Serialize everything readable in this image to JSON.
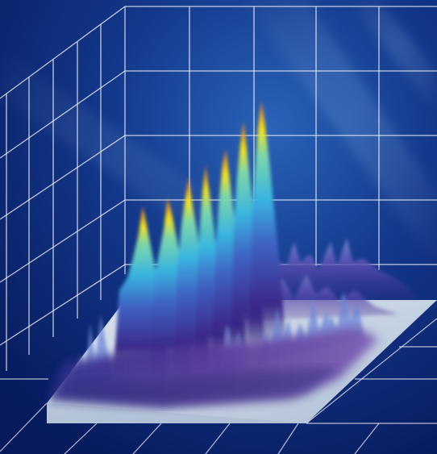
{
  "scene": {
    "subject": "3d-waterfall-spectrum-render",
    "colors": {
      "background_deep": "#061a5c",
      "background_light": "#1d4fa6",
      "grid_line": "#ffffff",
      "floor": "#c9d6e6",
      "peak_low": "#3b2a8a",
      "peak_mid": "#39b4e0",
      "peak_high": "#f2e21f",
      "peak_tip": "#e8741f"
    }
  }
}
